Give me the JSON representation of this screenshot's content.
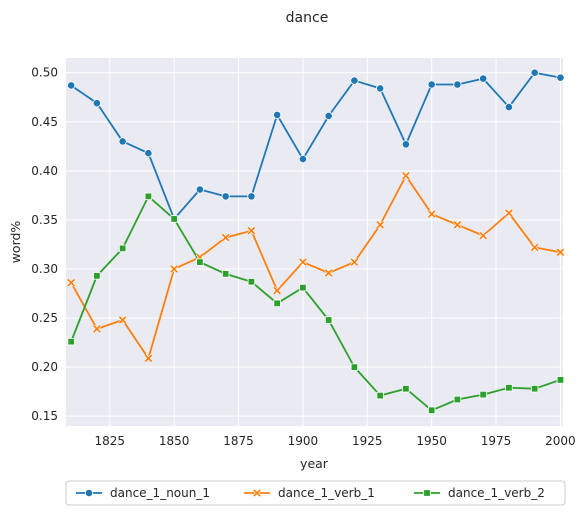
{
  "chart_data": {
    "type": "line",
    "title": "dance",
    "xlabel": "year",
    "ylabel": "word%",
    "xlim": [
      1808,
      2001
    ],
    "ylim": [
      0.14,
      0.515
    ],
    "x_ticks": [
      1825,
      1850,
      1875,
      1900,
      1925,
      1950,
      1975,
      2000
    ],
    "y_ticks": [
      0.15,
      0.2,
      0.25,
      0.3,
      0.35,
      0.4,
      0.45,
      0.5
    ],
    "x_tick_labels": [
      "1825",
      "1850",
      "1875",
      "1900",
      "1925",
      "1950",
      "1975",
      "2000"
    ],
    "y_tick_labels": [
      "0.15",
      "0.20",
      "0.25",
      "0.30",
      "0.35",
      "0.40",
      "0.45",
      "0.50"
    ],
    "grid": true,
    "legend_position": "bottom",
    "x": [
      1810,
      1820,
      1830,
      1840,
      1850,
      1860,
      1870,
      1880,
      1890,
      1900,
      1910,
      1920,
      1930,
      1940,
      1950,
      1960,
      1970,
      1980,
      1990,
      2000
    ],
    "series": [
      {
        "name": "dance_1_noun_1",
        "color": "#1f77b4",
        "marker": "circle",
        "values": [
          0.487,
          0.469,
          0.43,
          0.418,
          0.351,
          0.381,
          0.374,
          0.374,
          0.457,
          0.412,
          0.456,
          0.492,
          0.484,
          0.427,
          0.488,
          0.488,
          0.494,
          0.465,
          0.5,
          0.495
        ]
      },
      {
        "name": "dance_1_verb_1",
        "color": "#ff7f0e",
        "marker": "x",
        "values": [
          0.286,
          0.239,
          0.248,
          0.209,
          0.3,
          0.312,
          0.332,
          0.339,
          0.278,
          0.307,
          0.296,
          0.307,
          0.345,
          0.395,
          0.356,
          0.345,
          0.334,
          0.357,
          0.322,
          0.317
        ]
      },
      {
        "name": "dance_1_verb_2",
        "color": "#2ca02c",
        "marker": "square",
        "values": [
          0.226,
          0.293,
          0.321,
          0.374,
          0.351,
          0.307,
          0.295,
          0.287,
          0.265,
          0.281,
          0.248,
          0.2,
          0.171,
          0.178,
          0.156,
          0.167,
          0.172,
          0.179,
          0.178,
          0.187
        ]
      }
    ]
  }
}
